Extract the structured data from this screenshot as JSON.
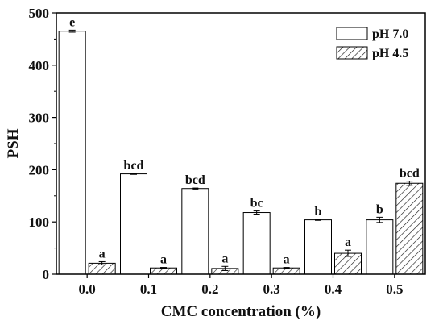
{
  "chart_data": {
    "type": "bar",
    "xlabel": "CMC concentration (%)",
    "ylabel": "PSH",
    "ylim": [
      0,
      500
    ],
    "yticks": [
      0,
      100,
      200,
      300,
      400,
      500
    ],
    "categories": [
      "0.0",
      "0.1",
      "0.2",
      "0.3",
      "0.4",
      "0.5"
    ],
    "legend_position": "top-right",
    "grid": false,
    "series": [
      {
        "name": "pH 7.0",
        "fill": "#ffffff",
        "pattern": "none",
        "values": [
          465,
          192,
          164,
          118,
          104,
          104
        ],
        "errors": [
          2,
          1,
          1,
          3,
          1,
          5
        ],
        "labels": [
          "e",
          "bcd",
          "bcd",
          "bc",
          "b",
          "b"
        ]
      },
      {
        "name": "pH 4.5",
        "fill": "#ffffff",
        "pattern": "hatch",
        "values": [
          21,
          12,
          11,
          12,
          40,
          174
        ],
        "errors": [
          3,
          1,
          4,
          1,
          6,
          4
        ],
        "labels": [
          "a",
          "a",
          "a",
          "a",
          "a",
          "bcd"
        ]
      }
    ]
  }
}
